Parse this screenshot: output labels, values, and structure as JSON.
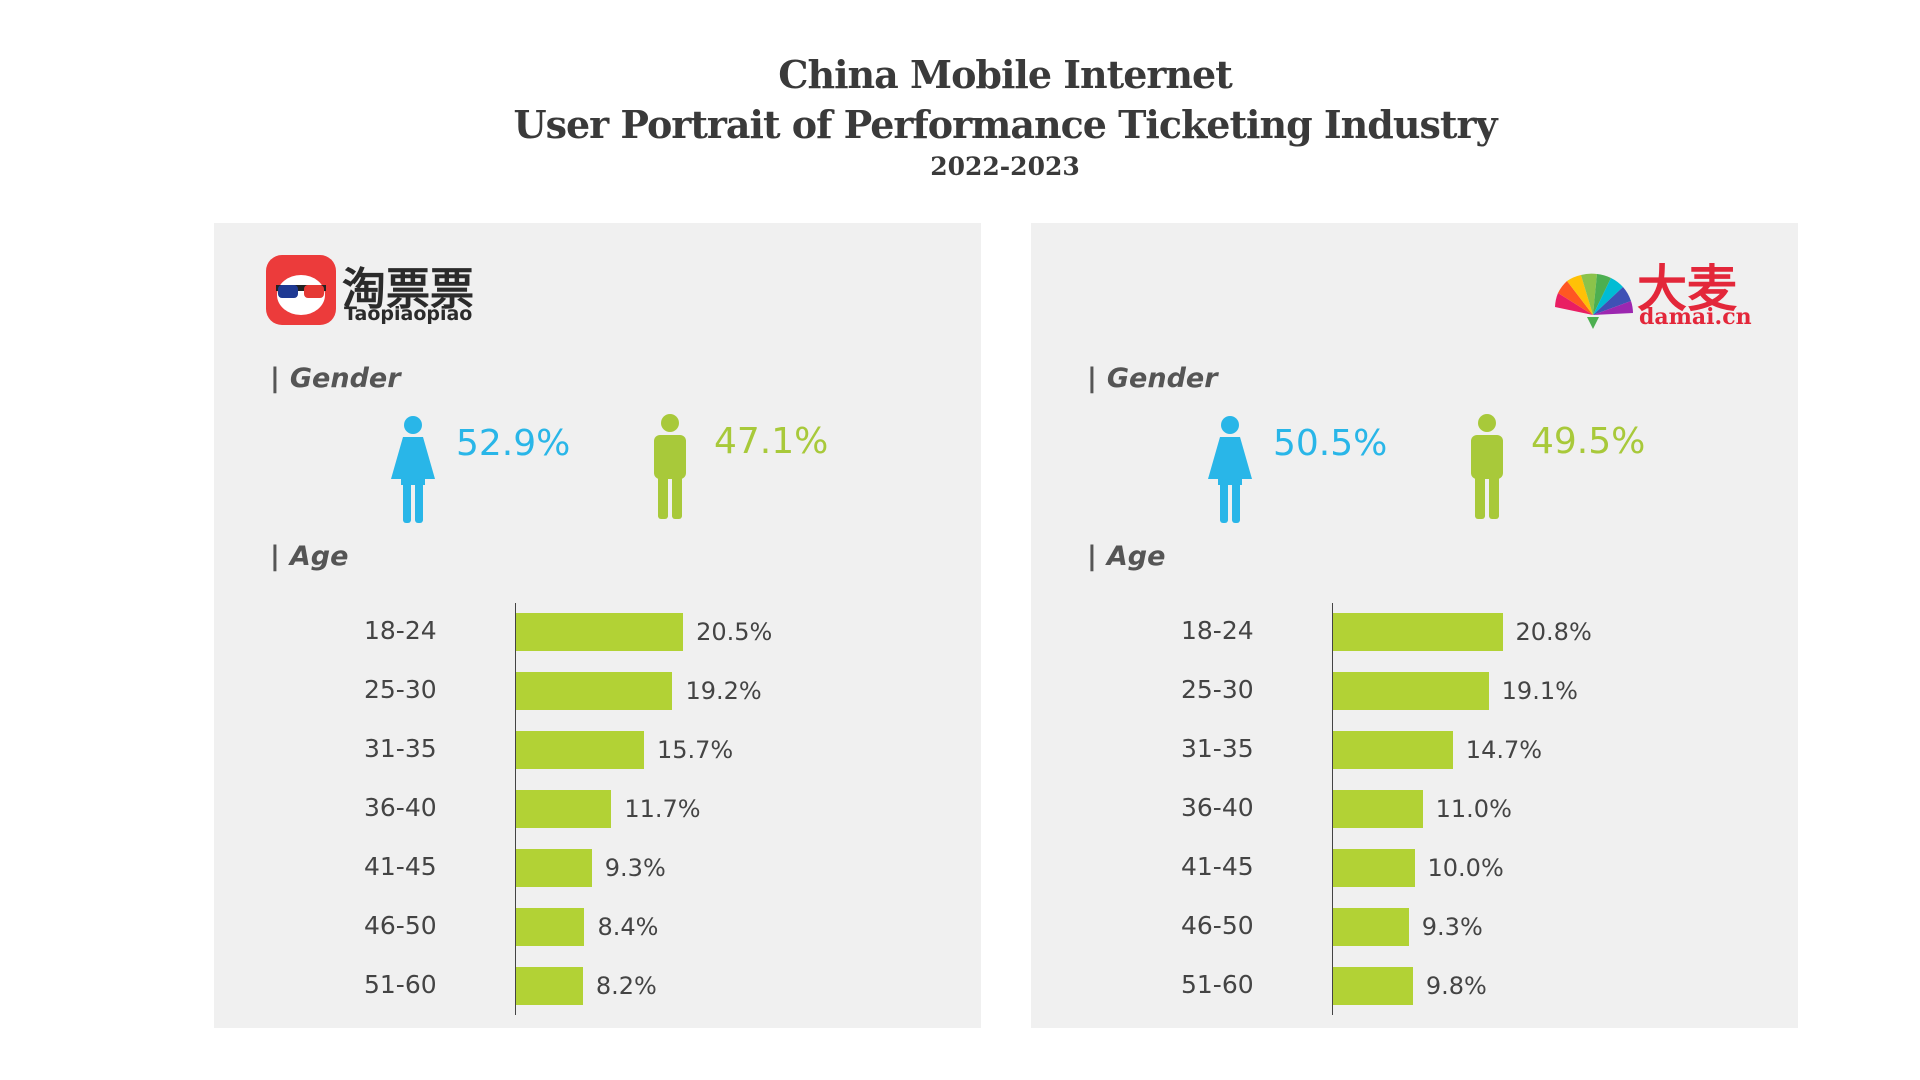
{
  "header": {
    "title_line1": "China Mobile Internet",
    "title_line2": "User Portrait of Performance Ticketing Industry",
    "title_line3": "2022-2023"
  },
  "colors": {
    "female": "#29b6e8",
    "male": "#a8c93a",
    "bar": "#b2d235",
    "panel": "#f0f0f0",
    "taopiaopiao_red": "#ec3b3b",
    "damai_red": "#e3273a"
  },
  "sections": {
    "gender_label": "Gender",
    "age_label": "Age",
    "pipe": "|"
  },
  "panels": [
    {
      "logo": {
        "name_cn": "淘票票",
        "name_en": "Taopiaopiao",
        "icon": "taopiaopiao-logo-icon"
      },
      "gender": {
        "female": "52.9%",
        "male": "47.1%"
      }
    },
    {
      "logo": {
        "name_cn": "大麦",
        "name_en": "damai.cn",
        "icon": "damai-logo-icon"
      },
      "gender": {
        "female": "50.5%",
        "male": "49.5%"
      }
    }
  ],
  "chart_data": [
    {
      "type": "bar",
      "orientation": "horizontal",
      "categories": [
        "18-24",
        "25-30",
        "31-35",
        "36-40",
        "41-45",
        "46-50",
        "51-60"
      ],
      "values": [
        20.5,
        19.2,
        15.7,
        11.7,
        9.3,
        8.4,
        8.2
      ],
      "value_labels": [
        "20.5%",
        "19.2%",
        "15.7%",
        "11.7%",
        "9.3%",
        "8.4%",
        "8.2%"
      ],
      "title": "",
      "xlabel": "",
      "ylabel": "",
      "grid": false,
      "legend": "none"
    },
    {
      "type": "bar",
      "orientation": "horizontal",
      "categories": [
        "18-24",
        "25-30",
        "31-35",
        "36-40",
        "41-45",
        "46-50",
        "51-60"
      ],
      "values": [
        20.8,
        19.1,
        14.7,
        11.0,
        10.0,
        9.3,
        9.8
      ],
      "value_labels": [
        "20.8%",
        "19.1%",
        "14.7%",
        "11.0%",
        "10.0%",
        "9.3%",
        "9.8%"
      ],
      "title": "",
      "xlabel": "",
      "ylabel": "",
      "grid": false,
      "legend": "none"
    }
  ]
}
